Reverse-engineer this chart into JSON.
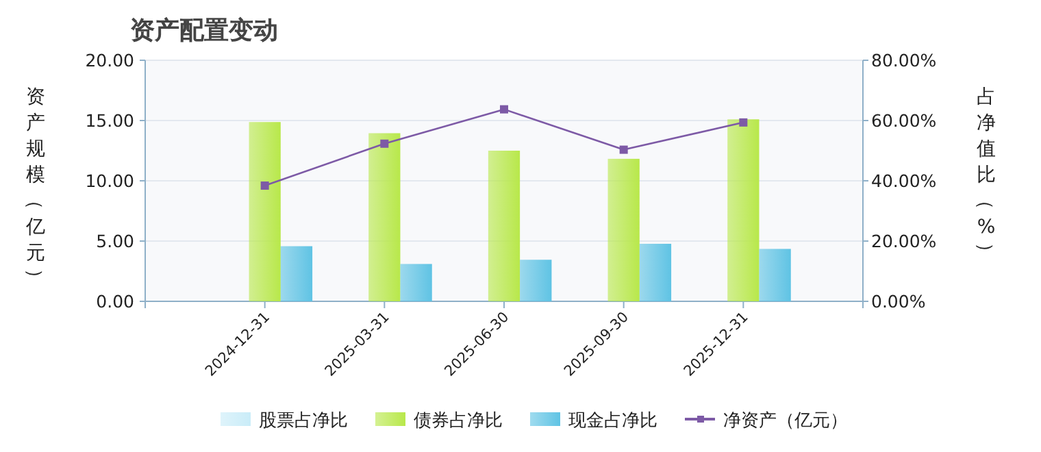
{
  "chart_data": {
    "type": "bar",
    "title": "资产配置变动",
    "ylabel": "资产规模（亿元）",
    "y2label": "占净值比（%）",
    "categories": [
      null,
      "2024-12-31",
      "2025-03-31",
      "2025-06-30",
      "2025-09-30",
      "2025-12-31",
      null
    ],
    "series": [
      {
        "name": "股票占净比",
        "color": "#c9ecf8",
        "axis": "y2",
        "values": [
          null,
          null,
          null,
          null,
          null,
          null,
          null
        ]
      },
      {
        "name": "债券占净比",
        "color": "#b8e84a",
        "axis": "y2",
        "values": [
          null,
          59.5,
          55.8,
          50.0,
          47.3,
          60.4,
          null
        ]
      },
      {
        "name": "现金占净比",
        "color": "#5fc3e4",
        "axis": "y2",
        "values": [
          null,
          18.3,
          12.4,
          13.8,
          19.1,
          17.4,
          null
        ]
      },
      {
        "name": "净资产（亿元）",
        "type": "line",
        "color": "#7d5aa6",
        "axis": "y",
        "marker": "square",
        "values": [
          null,
          9.6,
          13.08,
          15.93,
          12.58,
          14.84,
          null
        ]
      }
    ],
    "ylim": [
      0,
      20
    ],
    "yticks": [
      {
        "value": 0,
        "label": "0.00"
      },
      {
        "value": 5,
        "label": "5.00"
      },
      {
        "value": 10,
        "label": "10.00"
      },
      {
        "value": 15,
        "label": "15.00"
      },
      {
        "value": 20,
        "label": "20.00"
      }
    ],
    "y2lim": [
      0,
      80
    ],
    "y2ticks": [
      {
        "value": 0,
        "label": "0.00%"
      },
      {
        "value": 20,
        "label": "20.00%"
      },
      {
        "value": 40,
        "label": "40.00%"
      },
      {
        "value": 60,
        "label": "60.00%"
      },
      {
        "value": 80,
        "label": "80.00%"
      }
    ],
    "grid": "y",
    "legend": "bottom"
  }
}
